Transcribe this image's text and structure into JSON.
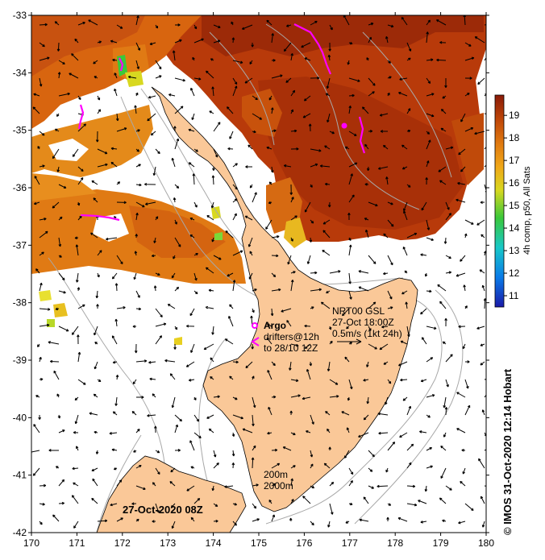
{
  "map": {
    "x_axis": {
      "ticks": [
        "170",
        "171",
        "172",
        "173",
        "174",
        "175",
        "176",
        "177",
        "178",
        "179",
        "180"
      ]
    },
    "y_axis": {
      "ticks": [
        "-33",
        "-34",
        "-35",
        "-36",
        "-37",
        "-38",
        "-39",
        "-40",
        "-41",
        "-42"
      ]
    },
    "lon_range": [
      170,
      180
    ],
    "lat_range": [
      -42,
      -33
    ],
    "timestamp_label": "27-Oct-2020 08Z",
    "credit": "© IMOS 31-Oct-2020 12:14 Hobart",
    "colorbar": {
      "label": "4h comp, p50, All Sats",
      "ticks": [
        "11",
        "12",
        "13",
        "14",
        "15",
        "16",
        "17",
        "18",
        "19"
      ],
      "range": [
        10.5,
        19.9
      ],
      "colors": [
        "#1a1aa8",
        "#0a7be8",
        "#18c8c8",
        "#3ac83a",
        "#d8d820",
        "#f0a818",
        "#e07a10",
        "#c04808",
        "#8a1a08"
      ]
    },
    "current_legend": {
      "source": "NRT00 GSL",
      "date": "27-Oct 18:00Z",
      "scale": "0.5m/s (1kt 24h)"
    },
    "argo_legend": {
      "title": "Argo",
      "line1": "drifters@12h",
      "line2": "to 28/10 12Z"
    },
    "contour_legend": {
      "line1": "200m",
      "line2": "2000m"
    },
    "colors": {
      "land": "#fac898",
      "warm_water": "#b83a0a",
      "mid_water": "#d8650f",
      "cool_water": "#e48a1a",
      "drifter": "#ff00ff",
      "bathy": "#a0a0a0"
    }
  }
}
